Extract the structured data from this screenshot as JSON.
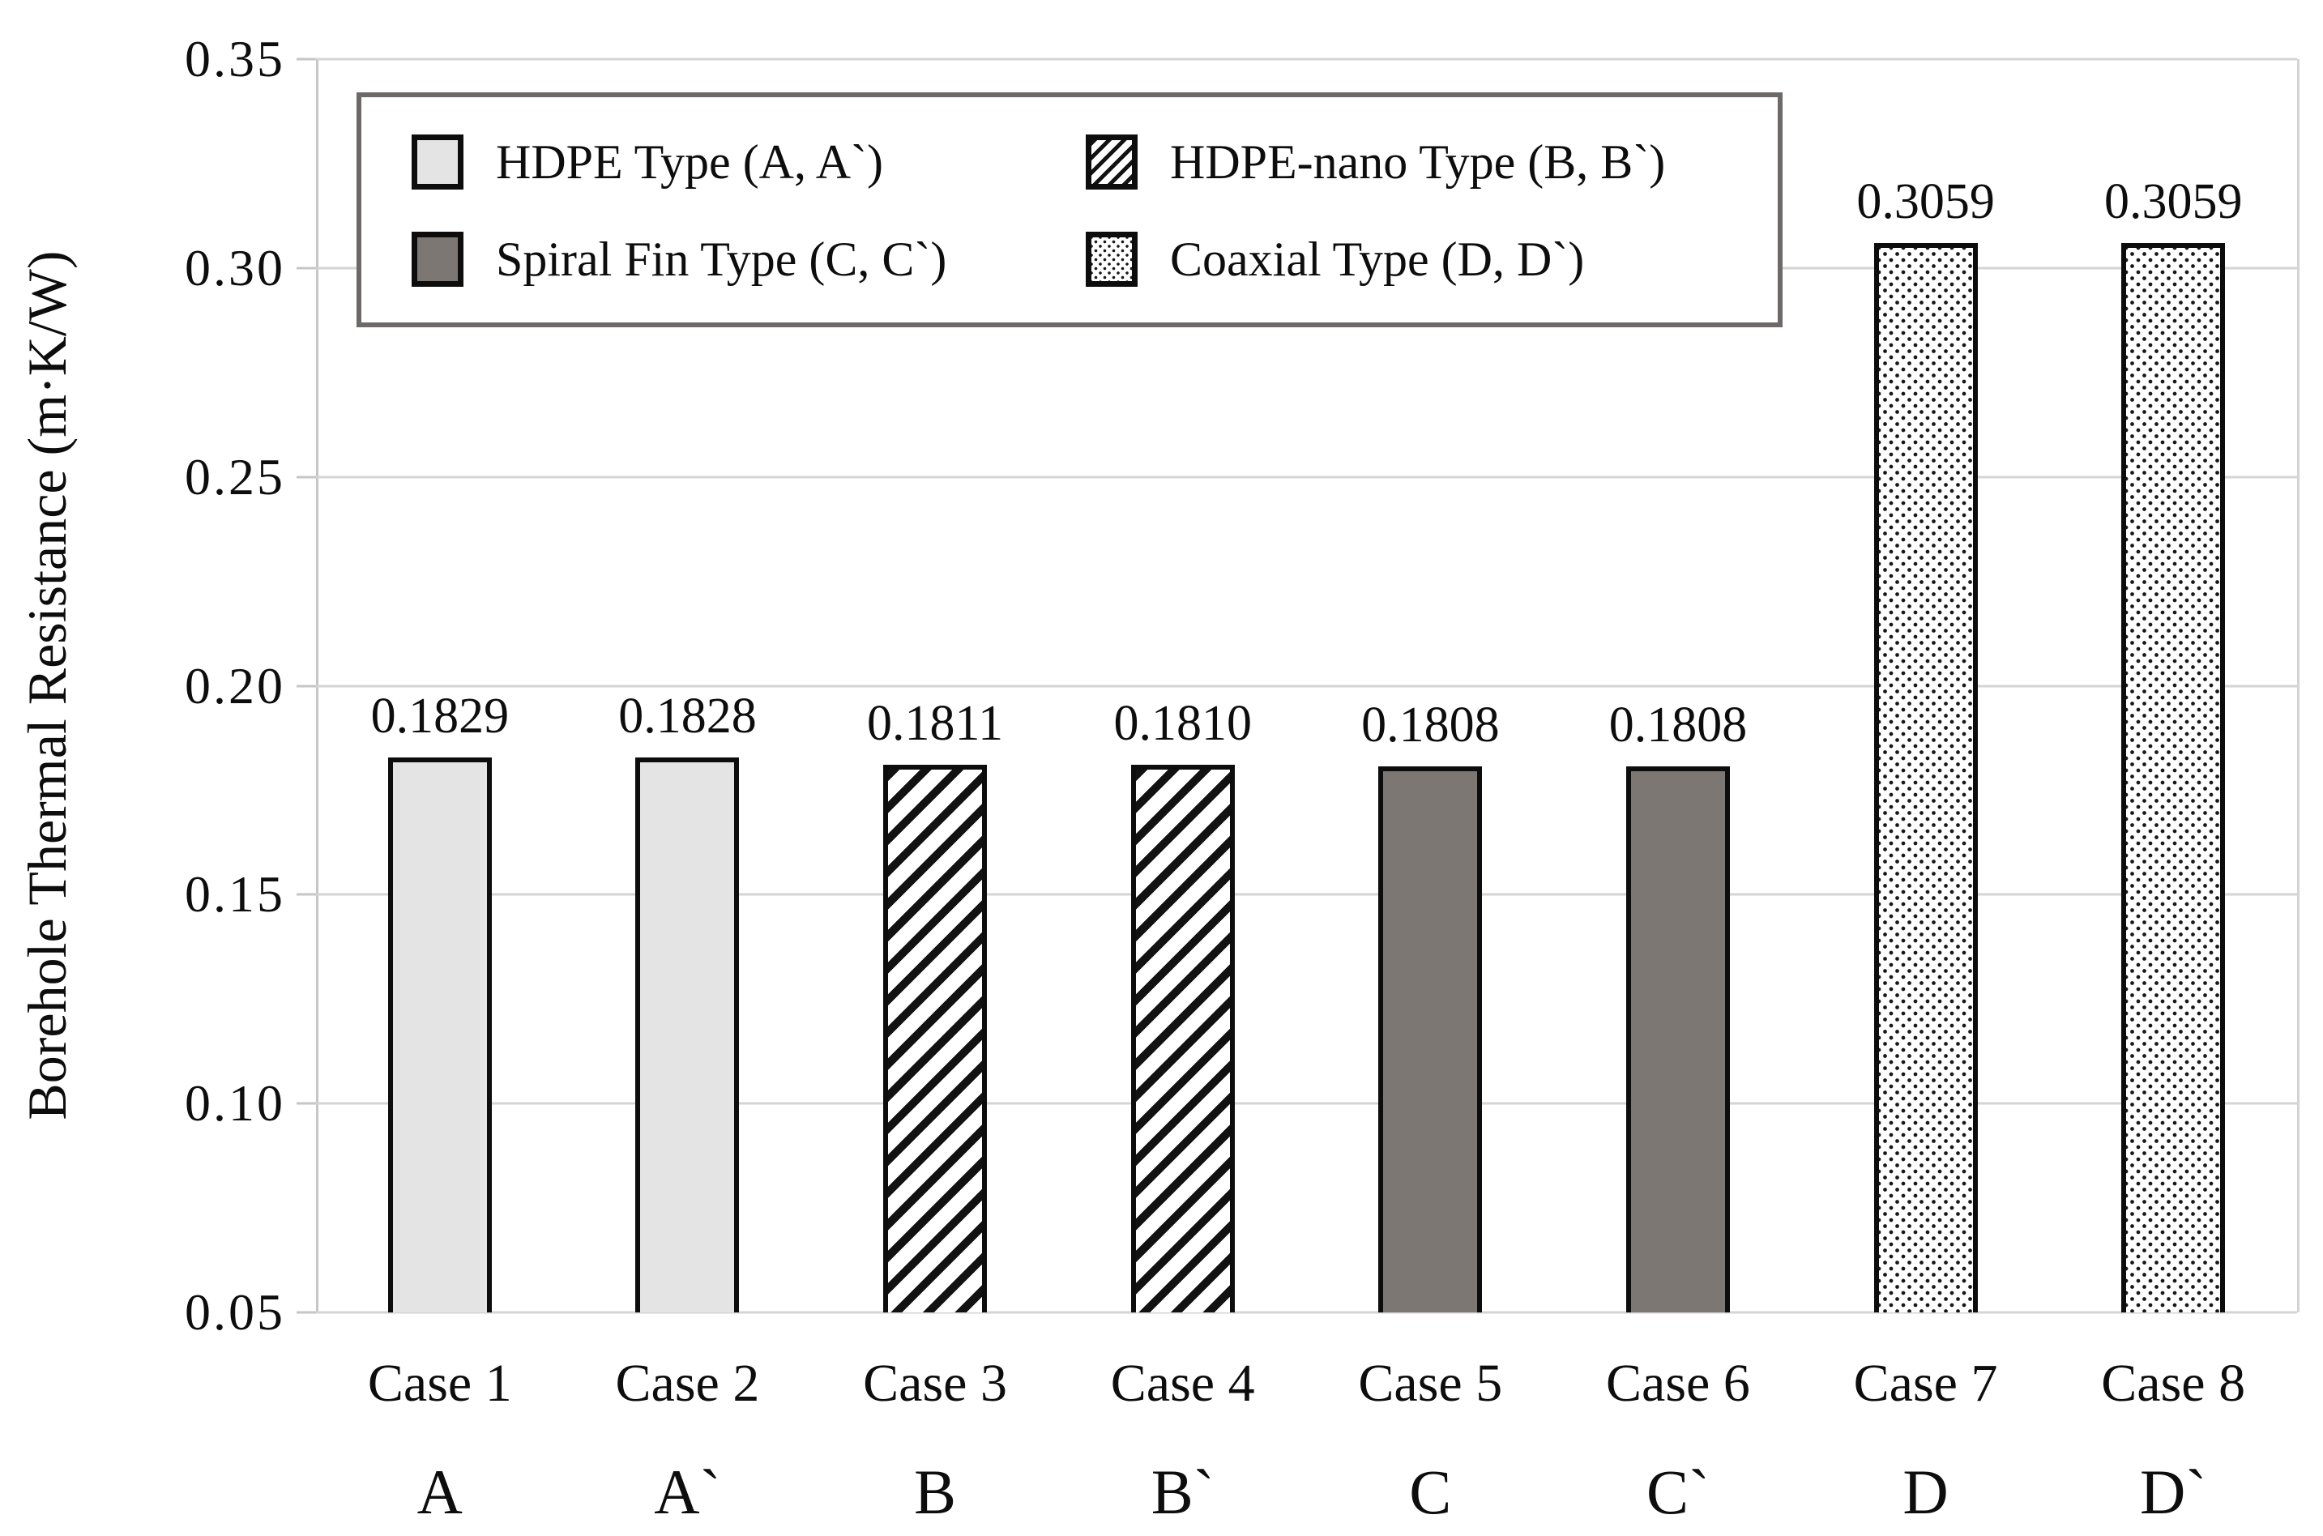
{
  "chart_data": {
    "type": "bar",
    "title": "",
    "xlabel": "",
    "ylabel": "Borehole Thermal Resistance (m·K/W)",
    "ylim": [
      0.05,
      0.35
    ],
    "ytick_interval": 0.05,
    "ytick_labels": [
      "0.35",
      "0.30",
      "0.25",
      "0.20",
      "0.15",
      "0.10",
      "0.05"
    ],
    "grid": "horizontal",
    "legend_position": "inside-top-left",
    "categories": [
      "Case 1",
      "Case 2",
      "Case 3",
      "Case 4",
      "Case 5",
      "Case 6",
      "Case 7",
      "Case 8"
    ],
    "sub_labels": [
      "A",
      "A`",
      "B",
      "B`",
      "C",
      "C`",
      "D",
      "D`"
    ],
    "series": [
      {
        "name": "Borehole Thermal Resistance",
        "values": [
          0.1829,
          0.1828,
          0.1811,
          0.181,
          0.1808,
          0.1808,
          0.3059,
          0.3059
        ],
        "value_labels": [
          "0.1829",
          "0.1828",
          "0.1811",
          "0.1810",
          "0.1808",
          "0.1808",
          "0.3059",
          "0.3059"
        ],
        "bar_styles": [
          "hdpe",
          "hdpe",
          "nano",
          "nano",
          "spiral",
          "spiral",
          "coaxial",
          "coaxial"
        ]
      }
    ],
    "legend": [
      {
        "label": "HDPE Type (A, A`)",
        "style": "hdpe"
      },
      {
        "label": "HDPE-nano Type (B, B`)",
        "style": "nano"
      },
      {
        "label": "Spiral Fin Type (C, C`)",
        "style": "spiral"
      },
      {
        "label": "Coaxial Type (D, D`)",
        "style": "coaxial"
      }
    ],
    "colors": {
      "hdpe_fill": "#e4e4e4",
      "hdpe_nano_pattern": "#121212",
      "spiral_fin_fill": "#7d7774",
      "coaxial_dot": "#161616",
      "bar_border": "#0d0d0d",
      "gridline": "#d4d4d4",
      "axis_line": "#c6c6c6",
      "legend_border": "#6e6868",
      "text": "#0d0d0d",
      "background": "#ffffff"
    }
  }
}
